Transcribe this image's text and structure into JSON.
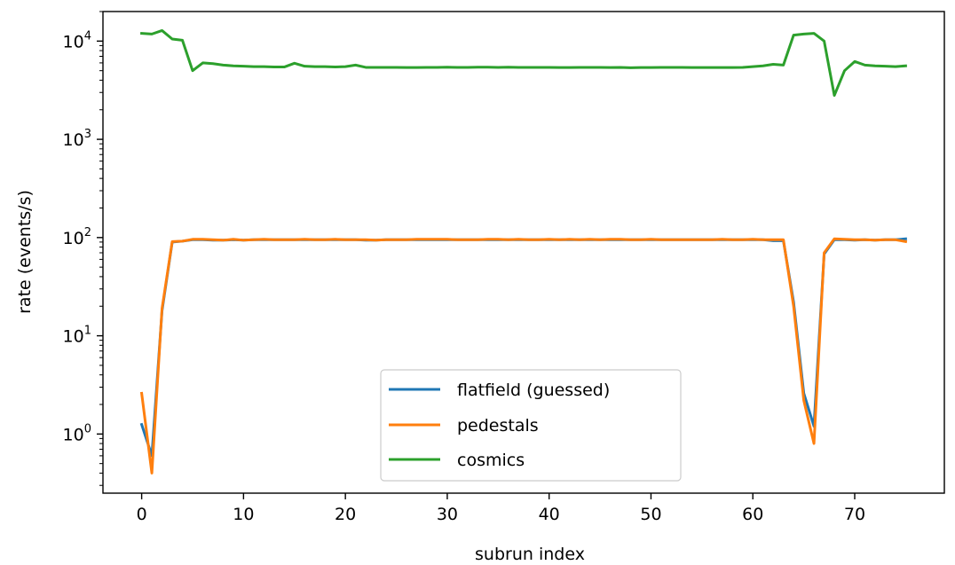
{
  "chart_data": {
    "type": "line",
    "title": "",
    "xlabel": "subrun index",
    "ylabel": "rate (events/s)",
    "yscale": "log",
    "xlim": [
      -3.8,
      78.8
    ],
    "ylim": [
      0.25,
      20000
    ],
    "grid": false,
    "legend_position": "bottom-center",
    "x_ticks": [
      0,
      10,
      20,
      30,
      40,
      50,
      60,
      70
    ],
    "x_tick_labels": [
      "0",
      "10",
      "20",
      "30",
      "40",
      "50",
      "60",
      "70"
    ],
    "y_ticks": [
      1,
      10,
      100,
      1000,
      10000
    ],
    "y_tick_labels": [
      {
        "base": "10",
        "exp": "0"
      },
      {
        "base": "10",
        "exp": "1"
      },
      {
        "base": "10",
        "exp": "2"
      },
      {
        "base": "10",
        "exp": "3"
      },
      {
        "base": "10",
        "exp": "4"
      }
    ],
    "x": [
      0,
      1,
      2,
      3,
      4,
      5,
      6,
      7,
      8,
      9,
      10,
      11,
      12,
      13,
      14,
      15,
      16,
      17,
      18,
      19,
      20,
      21,
      22,
      23,
      24,
      25,
      26,
      27,
      28,
      29,
      30,
      31,
      32,
      33,
      34,
      35,
      36,
      37,
      38,
      39,
      40,
      41,
      42,
      43,
      44,
      45,
      46,
      47,
      48,
      49,
      50,
      51,
      52,
      53,
      54,
      55,
      56,
      57,
      58,
      59,
      60,
      61,
      62,
      63,
      64,
      65,
      66,
      67,
      68,
      69,
      70,
      71,
      72,
      73,
      74,
      75
    ],
    "series": [
      {
        "name": "flatfield (guessed)",
        "color": "#1f77b4",
        "values": [
          1.25,
          0.6,
          18,
          90,
          92,
          95,
          95,
          94,
          94,
          95,
          94,
          95,
          95,
          95,
          95,
          95,
          95,
          95,
          95,
          95,
          95,
          95,
          94,
          94,
          95,
          95,
          95,
          95,
          95,
          95,
          95,
          95,
          95,
          95,
          95,
          95,
          95,
          95,
          95,
          95,
          95,
          95,
          95,
          95,
          95,
          95,
          95,
          95,
          95,
          95,
          95,
          95,
          95,
          95,
          95,
          95,
          95,
          95,
          95,
          95,
          95,
          95,
          93,
          93,
          22,
          2.6,
          1.2,
          68,
          95,
          95,
          94,
          95,
          94,
          95,
          95,
          97
        ]
      },
      {
        "name": "pedestals",
        "color": "#ff7f0e",
        "values": [
          2.6,
          0.4,
          19,
          91,
          92,
          96,
          96,
          95,
          94,
          96,
          94,
          95,
          96,
          95,
          95,
          95,
          96,
          95,
          95,
          96,
          95,
          95,
          95,
          94,
          95,
          95,
          95,
          96,
          96,
          96,
          96,
          95,
          95,
          95,
          96,
          96,
          95,
          96,
          95,
          95,
          96,
          95,
          96,
          95,
          96,
          95,
          96,
          96,
          95,
          95,
          96,
          95,
          95,
          95,
          95,
          95,
          95,
          96,
          95,
          95,
          96,
          95,
          95,
          95,
          20,
          2.2,
          0.8,
          70,
          97,
          96,
          95,
          95,
          94,
          95,
          95,
          91
        ]
      },
      {
        "name": "cosmics",
        "color": "#2ca02c",
        "values": [
          12000,
          11800,
          12800,
          10500,
          10200,
          5000,
          6000,
          5900,
          5700,
          5600,
          5550,
          5500,
          5500,
          5450,
          5450,
          5950,
          5550,
          5500,
          5500,
          5450,
          5500,
          5700,
          5400,
          5400,
          5400,
          5400,
          5380,
          5380,
          5400,
          5400,
          5420,
          5400,
          5400,
          5420,
          5420,
          5400,
          5420,
          5400,
          5400,
          5400,
          5400,
          5380,
          5380,
          5400,
          5400,
          5400,
          5380,
          5400,
          5360,
          5380,
          5380,
          5400,
          5400,
          5400,
          5380,
          5380,
          5380,
          5380,
          5380,
          5400,
          5500,
          5600,
          5800,
          5700,
          11500,
          11800,
          12000,
          10000,
          2800,
          5000,
          6200,
          5700,
          5600,
          5550,
          5500,
          5600
        ]
      }
    ]
  }
}
